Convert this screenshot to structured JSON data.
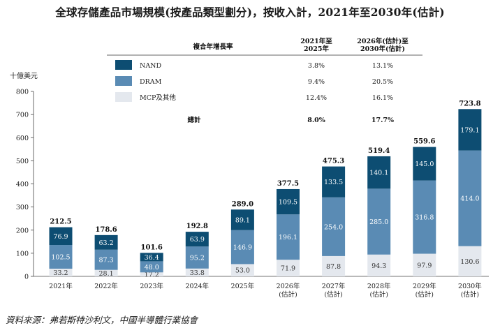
{
  "title": "全球存儲產品市場規模(按產品類型劃分)，按收入計，2021年至2030年(估計)",
  "source": "資料來源：弗若斯特沙利文，中國半導體行業協會",
  "chart_data": {
    "type": "bar",
    "stacked": true,
    "ylabel": "十億美元",
    "ylim": [
      0,
      800
    ],
    "yticks": [
      0,
      100,
      200,
      300,
      400,
      500,
      600,
      700,
      800
    ],
    "categories": [
      "2021年",
      "2022年",
      "2023年",
      "2024年",
      "2025年",
      "2026年\n(估計)",
      "2027年\n(估計)",
      "2028年\n(估計)",
      "2029年\n(估計)",
      "2030年\n(估計)"
    ],
    "series": [
      {
        "name": "MCP及其他",
        "color": "#e4e8ee",
        "label_color": "#333333",
        "values": [
          33.2,
          28.1,
          17.2,
          33.8,
          53.0,
          71.9,
          87.8,
          94.3,
          97.9,
          130.6
        ]
      },
      {
        "name": "DRAM",
        "color": "#5a8bb4",
        "label_color": "#ffffff",
        "values": [
          102.5,
          87.3,
          48.0,
          95.2,
          146.9,
          196.1,
          254.0,
          285.0,
          316.8,
          414.0
        ]
      },
      {
        "name": "NAND",
        "color": "#0d4d72",
        "label_color": "#ffffff",
        "values": [
          76.9,
          63.2,
          36.4,
          63.9,
          89.1,
          109.5,
          133.5,
          140.1,
          145.0,
          179.1
        ]
      }
    ],
    "totals": [
      212.5,
      178.6,
      101.6,
      192.8,
      289.0,
      377.5,
      475.3,
      519.4,
      559.6,
      723.8
    ],
    "legend_table": {
      "header": [
        "複合年增長率",
        "2021年至\n2025年",
        "2026年(估計)至\n2030年(估計)"
      ],
      "rows": [
        {
          "name": "NAND",
          "color": "#0d4d72",
          "cagr1": "3.8%",
          "cagr2": "13.1%"
        },
        {
          "name": "DRAM",
          "color": "#5a8bb4",
          "cagr1": "9.4%",
          "cagr2": "20.5%"
        },
        {
          "name": "MCP及其他",
          "color": "#e4e8ee",
          "cagr1": "12.4%",
          "cagr2": "16.1%"
        }
      ],
      "total": {
        "name": "總計",
        "cagr1": "8.0%",
        "cagr2": "17.7%"
      }
    }
  }
}
